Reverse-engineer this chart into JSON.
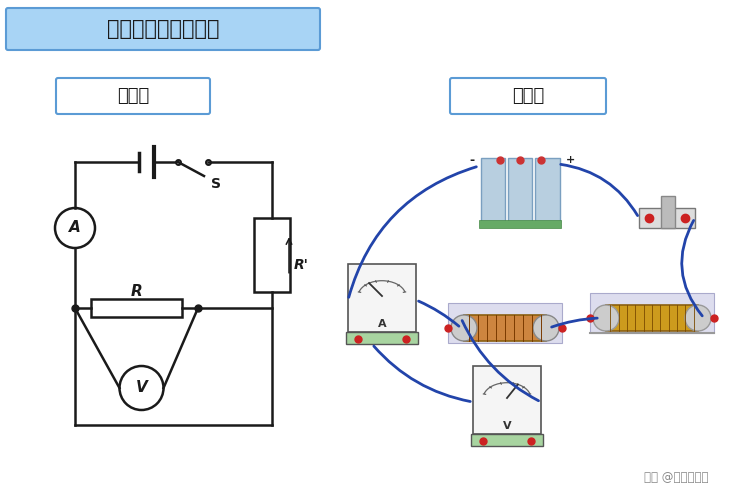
{
  "title": "实验电路图和实物图",
  "title_bg": "#a8d4f5",
  "title_border": "#5b9bd5",
  "left_label": "电路图",
  "right_label": "实物图",
  "label_bg": "#ffffff",
  "label_border": "#5b9bd5",
  "bg_color": "#ffffff",
  "circuit_line_color": "#1a1a1a",
  "wire_color": "#2244aa",
  "text_color": "#1a1a1a",
  "watermark": "头条 @理性科普者",
  "watermark_color": "#888888"
}
